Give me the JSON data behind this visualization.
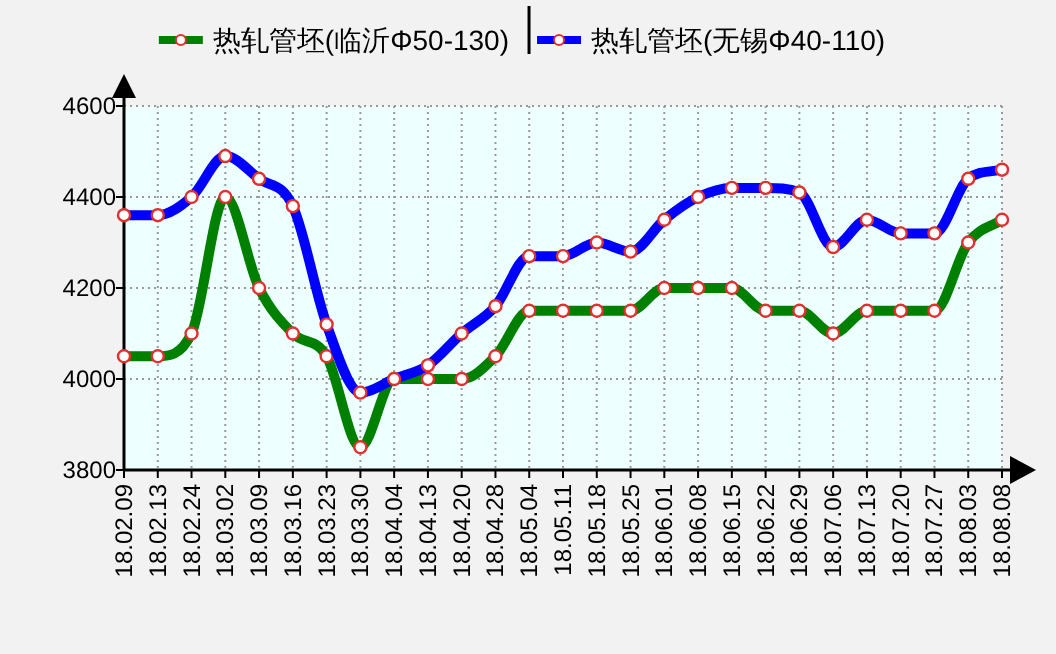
{
  "chart_data": {
    "type": "line",
    "categories": [
      "18.02.09",
      "18.02.13",
      "18.02.24",
      "18.03.02",
      "18.03.09",
      "18.03.16",
      "18.03.23",
      "18.03.30",
      "18.04.04",
      "18.04.13",
      "18.04.20",
      "18.04.28",
      "18.05.04",
      "18.05.11",
      "18.05.18",
      "18.05.25",
      "18.06.01",
      "18.06.08",
      "18.06.15",
      "18.06.22",
      "18.06.29",
      "18.07.06",
      "18.07.13",
      "18.07.20",
      "18.07.27",
      "18.08.03",
      "18.08.08"
    ],
    "series": [
      {
        "name": "热轧管坯(临沂Φ50-130)",
        "color": "#008000",
        "values": [
          4050,
          4050,
          4100,
          4400,
          4200,
          4100,
          4050,
          3850,
          4000,
          4000,
          4000,
          4050,
          4150,
          4150,
          4150,
          4150,
          4200,
          4200,
          4200,
          4150,
          4150,
          4100,
          4150,
          4150,
          4150,
          4300,
          4350
        ]
      },
      {
        "name": "热轧管坯(无锡Φ40-110)",
        "color": "#0000ff",
        "values": [
          4360,
          4360,
          4400,
          4490,
          4440,
          4380,
          4120,
          3970,
          4000,
          4030,
          4100,
          4160,
          4270,
          4270,
          4300,
          4280,
          4350,
          4400,
          4420,
          4420,
          4410,
          4290,
          4350,
          4320,
          4320,
          4440,
          4460
        ]
      }
    ],
    "ylim": [
      3800,
      4600
    ],
    "yticks": [
      3800,
      4000,
      4200,
      4400,
      4600
    ],
    "grid": true,
    "legend": "top",
    "marker": "circle"
  }
}
